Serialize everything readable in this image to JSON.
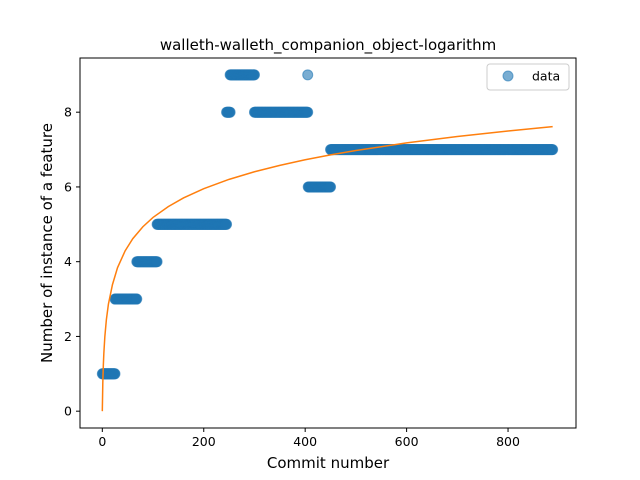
{
  "chart_data": {
    "type": "scatter",
    "title": "walleth-walleth_companion_object-logarithm",
    "xlabel": "Commit number",
    "ylabel": "Number of instance of a feature",
    "xlim": [
      -44,
      934
    ],
    "ylim": [
      -0.45,
      9.45
    ],
    "xticks": [
      0,
      200,
      400,
      600,
      800
    ],
    "yticks": [
      0,
      2,
      4,
      6,
      8
    ],
    "grid": false,
    "legend": {
      "position": "top-right",
      "entries": [
        "data"
      ]
    },
    "colors": {
      "data": "#1f77b4",
      "fit": "#ff7f0e"
    },
    "series": [
      {
        "name": "data",
        "kind": "scatter",
        "segments": [
          {
            "x_start": 0,
            "x_end": 25,
            "y": 1
          },
          {
            "x_start": 25,
            "x_end": 68,
            "y": 3
          },
          {
            "x_start": 68,
            "x_end": 108,
            "y": 4
          },
          {
            "x_start": 108,
            "x_end": 245,
            "y": 5
          },
          {
            "x_start": 245,
            "x_end": 252,
            "y": 8
          },
          {
            "x_start": 252,
            "x_end": 300,
            "y": 9
          },
          {
            "x_start": 300,
            "x_end": 405,
            "y": 8
          },
          {
            "x_start": 405,
            "x_end": 405,
            "y": 9
          },
          {
            "x_start": 406,
            "x_end": 450,
            "y": 6
          },
          {
            "x_start": 450,
            "x_end": 888,
            "y": 7
          }
        ]
      },
      {
        "name": "",
        "kind": "line",
        "x": [
          0,
          1,
          2,
          3,
          5,
          8,
          12,
          20,
          30,
          45,
          60,
          80,
          100,
          130,
          160,
          200,
          250,
          300,
          350,
          400,
          450,
          500,
          600,
          700,
          800,
          888
        ],
        "y": [
          0.0,
          0.773,
          1.225,
          1.546,
          1.998,
          2.449,
          2.862,
          3.387,
          3.839,
          4.291,
          4.614,
          4.935,
          5.185,
          5.474,
          5.705,
          5.954,
          6.203,
          6.406,
          6.578,
          6.727,
          6.858,
          6.976,
          7.178,
          7.349,
          7.498,
          7.614
        ]
      }
    ]
  }
}
